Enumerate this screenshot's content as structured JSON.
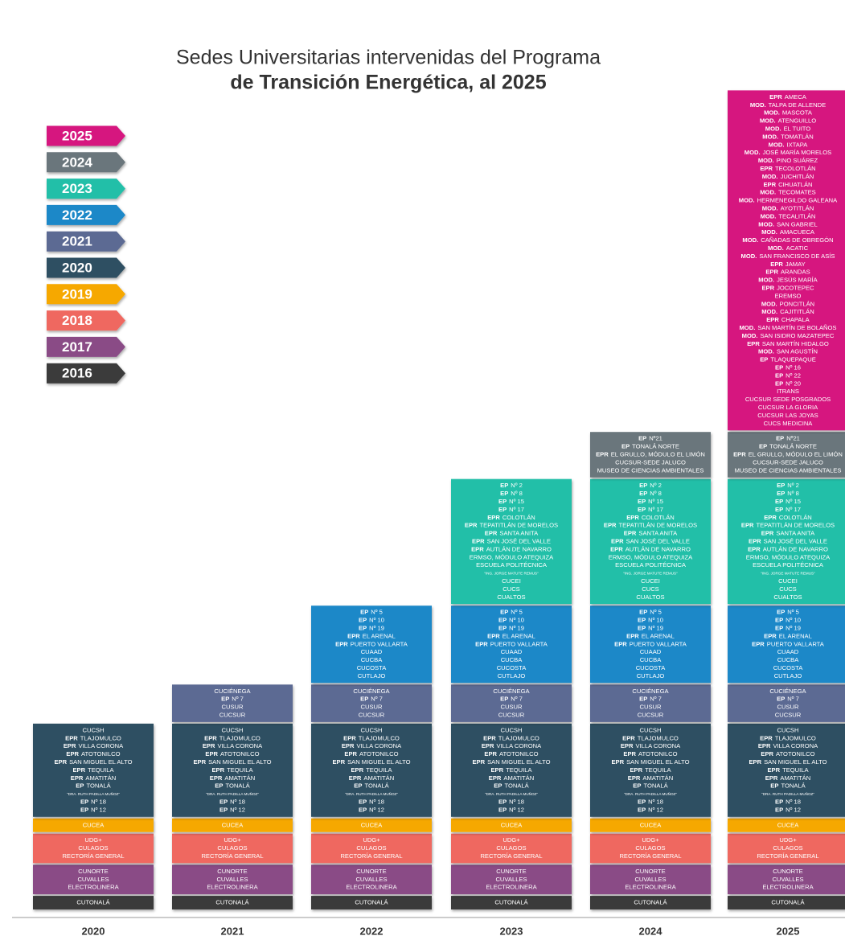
{
  "title": [
    "Sedes Universitarias intervenidas del Programa",
    "de Transición Energética, al 2025"
  ],
  "years": [
    {
      "label": "2016",
      "color": "#3b3b3b",
      "entries": [
        "CUTONALÁ"
      ]
    },
    {
      "label": "2017",
      "color": "#8a4b86",
      "entries": [
        "CUNORTE",
        "CUVALLES",
        "ELECTROLINERA"
      ]
    },
    {
      "label": "2018",
      "color": "#ef6861",
      "entries": [
        "UDG+",
        "CULAGOS",
        "RECTORÍA GENERAL"
      ]
    },
    {
      "label": "2019",
      "color": "#f6a800",
      "entries": [
        "CUCEA"
      ]
    },
    {
      "label": "2020",
      "color": "#2e4f62",
      "entries": [
        "CUCSH",
        [
          "EPR",
          "TLAJOMULCO"
        ],
        [
          "EPR",
          "VILLA CORONA"
        ],
        [
          "EPR",
          "ATOTONILCO"
        ],
        [
          "EPR",
          "SAN MIGUEL EL ALTO"
        ],
        [
          "EPR",
          "TEQUILA"
        ],
        [
          "EPR",
          "AMATITÁN"
        ],
        [
          "EP",
          "TONALÁ"
        ],
        {
          "note": "\"DRA. RUTH PADILLA MUÑOZ\""
        },
        [
          "EP",
          "Nº 18"
        ],
        [
          "EP",
          "Nº 12"
        ]
      ]
    },
    {
      "label": "2021",
      "color": "#5c6b93",
      "entries": [
        "CUCIÉNEGA",
        [
          "EP",
          "Nº 7"
        ],
        "CUSUR",
        "CUCSUR"
      ]
    },
    {
      "label": "2022",
      "color": "#1d88c8",
      "entries": [
        [
          "EP",
          "Nº 5"
        ],
        [
          "EP",
          "Nº 10"
        ],
        [
          "EP",
          "Nº 19"
        ],
        [
          "EPR",
          "EL ARENAL"
        ],
        [
          "EPR",
          "PUERTO VALLARTA"
        ],
        "CUAAD",
        "CUCBA",
        "CUCOSTA",
        "CUTLAJO"
      ]
    },
    {
      "label": "2023",
      "color": "#20bfa8",
      "entries": [
        [
          "EP",
          "Nº 2"
        ],
        [
          "EP",
          "Nº 8"
        ],
        [
          "EP",
          "Nº 15"
        ],
        [
          "EP",
          "Nº 17"
        ],
        [
          "EPR",
          "COLOTLÁN"
        ],
        [
          "EPR",
          "TEPATITLÁN DE MORELOS"
        ],
        [
          "EPR",
          "SANTA ANITA"
        ],
        [
          "EPR",
          "SAN JOSÉ DEL VALLE"
        ],
        [
          "EPR",
          "AUTLÁN DE NAVARRO"
        ],
        "ERMSO, MÓDULO ATEQUIZA",
        "ESCUELA POLITÉCNICA",
        {
          "note": "\"ING. JORGE MATUTE REMUS\""
        },
        "CUCEI",
        "CUCS",
        "CUALTOS"
      ]
    },
    {
      "label": "2024",
      "color": "#6b767b",
      "entries": [
        [
          "EP",
          "Nº21"
        ],
        [
          "EP",
          "TONALÁ NORTE"
        ],
        [
          "EPR",
          "EL GRULLO, MÓDULO EL LIMÓN"
        ],
        "CUCSUR-SEDE JALUCO",
        "MUSEO DE CIENCIAS AMBIENTALES"
      ]
    },
    {
      "label": "2025",
      "color": "#d6197f",
      "entries": [
        [
          "EPR",
          "AMECA"
        ],
        [
          "MOD.",
          "TALPA DE ALLENDE"
        ],
        [
          "MOD.",
          "MASCOTA"
        ],
        [
          "MOD.",
          "ATENGUILLO"
        ],
        [
          "MOD.",
          "EL TUITO"
        ],
        [
          "MOD.",
          "TOMATLÁN"
        ],
        [
          "MOD.",
          "IXTAPA"
        ],
        [
          "MOD.",
          "JOSÉ MARÍA MORELOS"
        ],
        [
          "MOD.",
          "PINO SUÁREZ"
        ],
        [
          "EPR",
          "TECOLOTLÁN"
        ],
        [
          "MOD.",
          "JUCHITLÁN"
        ],
        [
          "EPR",
          "CIHUATLÁN"
        ],
        [
          "MOD.",
          "TECOMATES"
        ],
        [
          "MOD.",
          "HERMENEGILDO GALEANA"
        ],
        [
          "MOD.",
          "AYOTITLÁN"
        ],
        [
          "MOD.",
          "TECALITLÁN"
        ],
        [
          "MOD.",
          "SAN GABRIEL"
        ],
        [
          "MOD.",
          "AMACUECA"
        ],
        [
          "MOD.",
          "CAÑADAS DE OBREGÓN"
        ],
        [
          "MOD.",
          "ACATIC"
        ],
        [
          "MOD.",
          "SAN FRANCISCO DE ASÍS"
        ],
        [
          "EPR",
          "JAMAY"
        ],
        [
          "EPR",
          "ARANDAS"
        ],
        [
          "MOD.",
          "JESÚS MARÍA"
        ],
        [
          "EPR",
          "JOCOTEPEC"
        ],
        "EREMSO",
        [
          "MOD.",
          "PONCITLÁN"
        ],
        [
          "MOD.",
          "CAJITITLÁN"
        ],
        [
          "EPR",
          "CHAPALA"
        ],
        [
          "MOD.",
          "SAN MARTÍN DE BOLAÑOS"
        ],
        [
          "MOD.",
          "SAN ISIDRO MAZATEPEC"
        ],
        [
          "EPR",
          "SAN MARTÍN HIDALGO"
        ],
        [
          "MOD.",
          "SAN AGUSTÍN"
        ],
        [
          "EP",
          "TLAQUEPAQUE"
        ],
        [
          "EP",
          "Nº 16"
        ],
        [
          "EP",
          "Nº 22"
        ],
        [
          "EP",
          "Nº 20"
        ],
        "ITRANS",
        "CUCSUR SEDE POSGRADOS",
        "CUCSUR LA GLORIA",
        "CUCSUR LAS JOYAS",
        "CUCS MEDICINA"
      ]
    }
  ],
  "columns": [
    "2020",
    "2021",
    "2022",
    "2023",
    "2024",
    "2025"
  ]
}
